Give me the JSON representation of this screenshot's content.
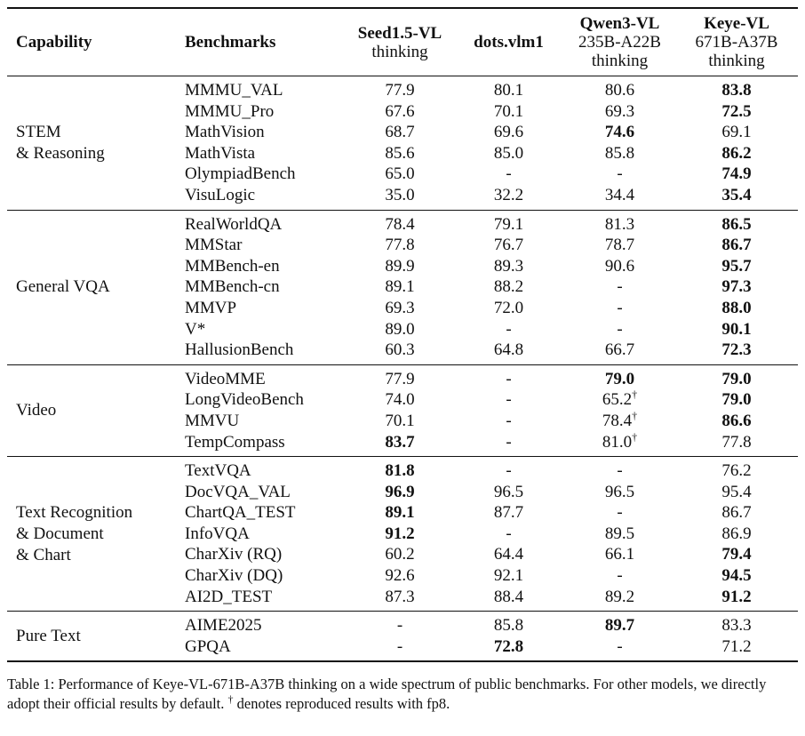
{
  "table": {
    "header": {
      "columns": [
        {
          "lines": [
            "Capability"
          ]
        },
        {
          "lines": [
            "Benchmarks"
          ]
        },
        {
          "lines": [
            "Seed1.5-VL",
            "thinking"
          ]
        },
        {
          "lines": [
            "dots.vlm1"
          ]
        },
        {
          "lines": [
            "Qwen3-VL",
            "235B-A22B",
            "thinking"
          ]
        },
        {
          "lines": [
            "Keye-VL",
            "671B-A37B",
            "thinking"
          ]
        }
      ]
    },
    "groups": [
      {
        "capability": [
          "STEM",
          "& Reasoning"
        ],
        "rows": [
          {
            "benchmark": "MMMU_VAL",
            "values": [
              "77.9",
              "80.1",
              "80.6",
              {
                "text": "83.8",
                "bold": true
              }
            ]
          },
          {
            "benchmark": "MMMU_Pro",
            "values": [
              "67.6",
              "70.1",
              "69.3",
              {
                "text": "72.5",
                "bold": true
              }
            ]
          },
          {
            "benchmark": "MathVision",
            "values": [
              "68.7",
              "69.6",
              {
                "text": "74.6",
                "bold": true
              },
              "69.1"
            ]
          },
          {
            "benchmark": "MathVista",
            "values": [
              "85.6",
              "85.0",
              "85.8",
              {
                "text": "86.2",
                "bold": true
              }
            ]
          },
          {
            "benchmark": "OlympiadBench",
            "values": [
              "65.0",
              "-",
              "-",
              {
                "text": "74.9",
                "bold": true
              }
            ]
          },
          {
            "benchmark": "VisuLogic",
            "values": [
              "35.0",
              "32.2",
              "34.4",
              {
                "text": "35.4",
                "bold": true
              }
            ]
          }
        ]
      },
      {
        "capability": [
          "General VQA"
        ],
        "rows": [
          {
            "benchmark": "RealWorldQA",
            "values": [
              "78.4",
              "79.1",
              "81.3",
              {
                "text": "86.5",
                "bold": true
              }
            ]
          },
          {
            "benchmark": "MMStar",
            "values": [
              "77.8",
              "76.7",
              "78.7",
              {
                "text": "86.7",
                "bold": true
              }
            ]
          },
          {
            "benchmark": "MMBench-en",
            "values": [
              "89.9",
              "89.3",
              "90.6",
              {
                "text": "95.7",
                "bold": true
              }
            ]
          },
          {
            "benchmark": "MMBench-cn",
            "values": [
              "89.1",
              "88.2",
              "-",
              {
                "text": "97.3",
                "bold": true
              }
            ]
          },
          {
            "benchmark": "MMVP",
            "values": [
              "69.3",
              "72.0",
              "-",
              {
                "text": "88.0",
                "bold": true
              }
            ]
          },
          {
            "benchmark": "V*",
            "values": [
              "89.0",
              "-",
              "-",
              {
                "text": "90.1",
                "bold": true
              }
            ]
          },
          {
            "benchmark": "HallusionBench",
            "values": [
              "60.3",
              "64.8",
              "66.7",
              {
                "text": "72.3",
                "bold": true
              }
            ]
          }
        ]
      },
      {
        "capability": [
          "Video"
        ],
        "rows": [
          {
            "benchmark": "VideoMME",
            "values": [
              "77.9",
              "-",
              {
                "text": "79.0",
                "bold": true
              },
              {
                "text": "79.0",
                "bold": true
              }
            ]
          },
          {
            "benchmark": "LongVideoBench",
            "values": [
              "74.0",
              "-",
              {
                "text": "65.2",
                "sup": "†"
              },
              {
                "text": "79.0",
                "bold": true
              }
            ]
          },
          {
            "benchmark": "MMVU",
            "values": [
              "70.1",
              "-",
              {
                "text": "78.4",
                "sup": "†"
              },
              {
                "text": "86.6",
                "bold": true
              }
            ]
          },
          {
            "benchmark": "TempCompass",
            "values": [
              {
                "text": "83.7",
                "bold": true
              },
              "-",
              {
                "text": "81.0",
                "sup": "†"
              },
              "77.8"
            ]
          }
        ]
      },
      {
        "capability": [
          "Text Recognition",
          "& Document",
          "& Chart"
        ],
        "rows": [
          {
            "benchmark": "TextVQA",
            "values": [
              {
                "text": "81.8",
                "bold": true
              },
              "-",
              "-",
              "76.2"
            ]
          },
          {
            "benchmark": "DocVQA_VAL",
            "values": [
              {
                "text": "96.9",
                "bold": true
              },
              "96.5",
              "96.5",
              "95.4"
            ]
          },
          {
            "benchmark": "ChartQA_TEST",
            "values": [
              {
                "text": "89.1",
                "bold": true
              },
              "87.7",
              "-",
              "86.7"
            ]
          },
          {
            "benchmark": "InfoVQA",
            "values": [
              {
                "text": "91.2",
                "bold": true
              },
              "-",
              "89.5",
              "86.9"
            ]
          },
          {
            "benchmark": "CharXiv (RQ)",
            "values": [
              "60.2",
              "64.4",
              "66.1",
              {
                "text": "79.4",
                "bold": true
              }
            ]
          },
          {
            "benchmark": "CharXiv (DQ)",
            "values": [
              "92.6",
              "92.1",
              "-",
              {
                "text": "94.5",
                "bold": true
              }
            ]
          },
          {
            "benchmark": "AI2D_TEST",
            "values": [
              "87.3",
              "88.4",
              "89.2",
              {
                "text": "91.2",
                "bold": true
              }
            ]
          }
        ]
      },
      {
        "capability": [
          "Pure Text"
        ],
        "rows": [
          {
            "benchmark": "AIME2025",
            "values": [
              "-",
              "85.8",
              {
                "text": "89.7",
                "bold": true
              },
              "83.3"
            ]
          },
          {
            "benchmark": "GPQA",
            "values": [
              "-",
              {
                "text": "72.8",
                "bold": true
              },
              "-",
              "71.2"
            ]
          }
        ]
      }
    ],
    "caption": [
      "Table 1: Performance of Keye-VL-671B-A37B thinking on a wide spectrum of public benchmarks. For other models, we directly adopt their official results by default. ",
      "†",
      " denotes reproduced results with fp8."
    ]
  }
}
